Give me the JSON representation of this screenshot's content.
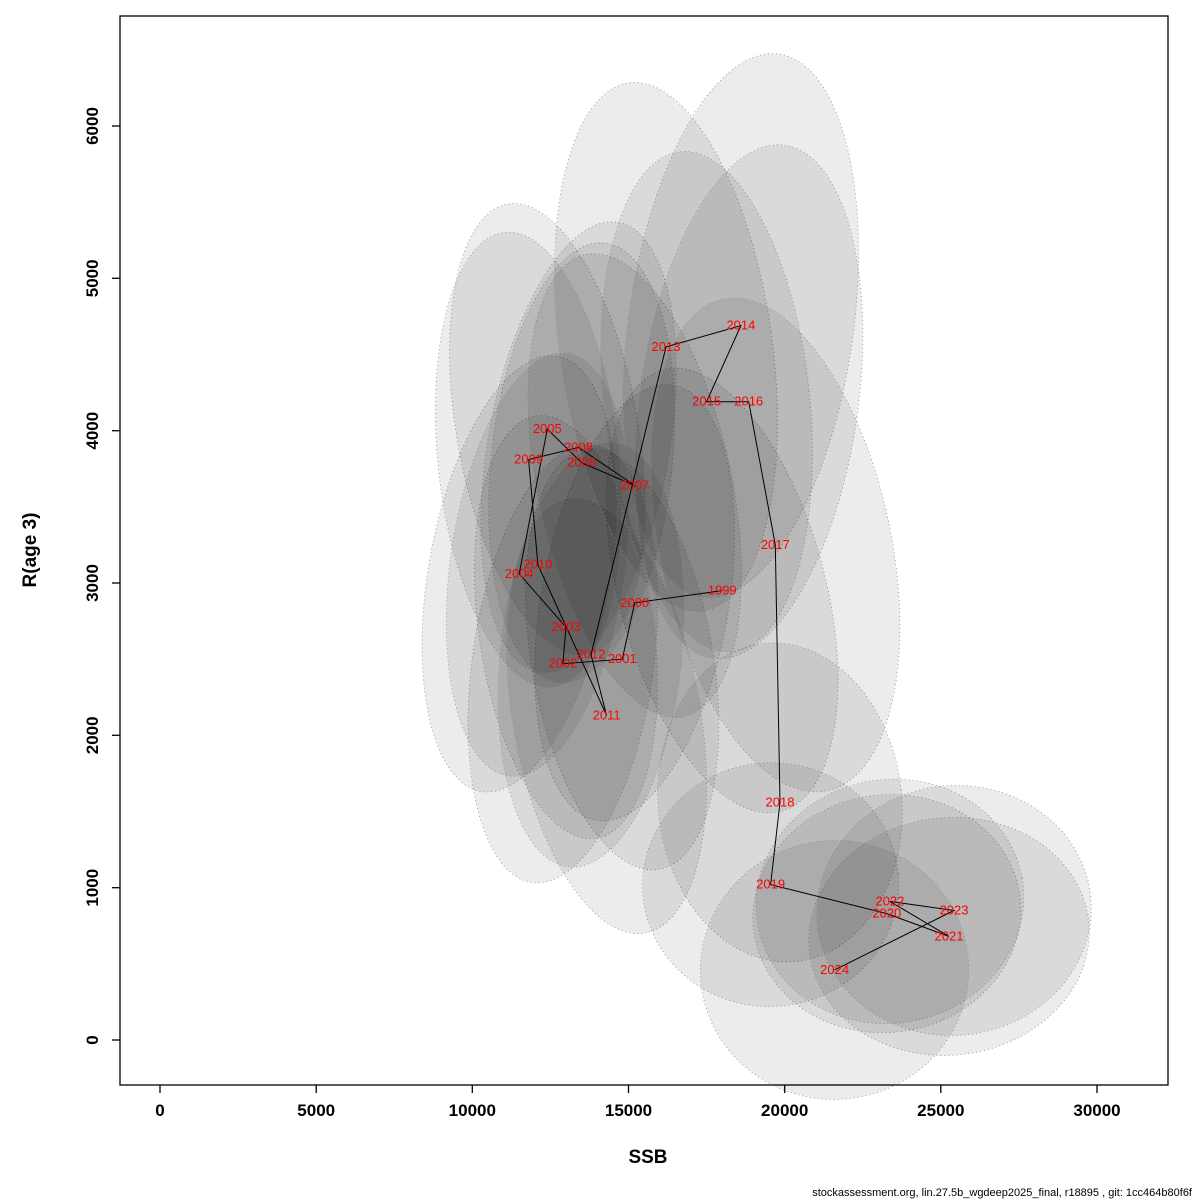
{
  "footer": "stockassessment.org, lin.27.5b_wgdeep2025_final, r18895 , git: 1cc464b80f6f",
  "chart_data": {
    "type": "scatter",
    "title": "",
    "xlabel": "SSB",
    "ylabel": "R(age 3)",
    "xlim": [
      0,
      30000
    ],
    "ylim": [
      0,
      6000
    ],
    "grid": false,
    "legend": "none",
    "x_ticks": [
      0,
      5000,
      10000,
      15000,
      20000,
      25000,
      30000
    ],
    "y_ticks": [
      0,
      1000,
      2000,
      3000,
      4000,
      5000,
      6000
    ],
    "label_color": "#ff0000",
    "ellipse_fill": "rgba(0,0,0,0.075)",
    "ellipse_stroke": "#8c8c8c",
    "description": "Stock-recruitment trajectory with per-year confidence ellipses, years connected sequentially 1999-2024",
    "points": [
      {
        "year": "1999",
        "ssb": 18000,
        "r": 2950,
        "rx": 3300,
        "ry": 1500,
        "rot": -15
      },
      {
        "year": "2000",
        "ssb": 15200,
        "r": 2870,
        "rx": 3000,
        "ry": 1450,
        "rot": 10
      },
      {
        "year": "2001",
        "ssb": 14800,
        "r": 2500,
        "rx": 2900,
        "ry": 1400,
        "rot": -10
      },
      {
        "year": "2002",
        "ssb": 12900,
        "r": 2470,
        "rx": 2900,
        "ry": 1450,
        "rot": 8
      },
      {
        "year": "2003",
        "ssb": 13000,
        "r": 2710,
        "rx": 2800,
        "ry": 1400,
        "rot": -8
      },
      {
        "year": "2004",
        "ssb": 11500,
        "r": 3060,
        "rx": 2900,
        "ry": 1450,
        "rot": 10
      },
      {
        "year": "2005",
        "ssb": 12400,
        "r": 4010,
        "rx": 2900,
        "ry": 1500,
        "rot": -10
      },
      {
        "year": "2006",
        "ssb": 13500,
        "r": 3790,
        "rx": 2900,
        "ry": 1450,
        "rot": 6
      },
      {
        "year": "2007",
        "ssb": 15200,
        "r": 3640,
        "rx": 3100,
        "ry": 1550,
        "rot": -12
      },
      {
        "year": "2008",
        "ssb": 13400,
        "r": 3890,
        "rx": 2900,
        "ry": 1500,
        "rot": 10
      },
      {
        "year": "2009",
        "ssb": 11800,
        "r": 3810,
        "rx": 2900,
        "ry": 1500,
        "rot": -6
      },
      {
        "year": "2010",
        "ssb": 12100,
        "r": 3120,
        "rx": 2800,
        "ry": 1400,
        "rot": 8
      },
      {
        "year": "2011",
        "ssb": 14300,
        "r": 2130,
        "rx": 3000,
        "ry": 1450,
        "rot": -10
      },
      {
        "year": "2012",
        "ssb": 13800,
        "r": 2530,
        "rx": 2900,
        "ry": 1400,
        "rot": 6
      },
      {
        "year": "2013",
        "ssb": 16200,
        "r": 4550,
        "rx": 3400,
        "ry": 1750,
        "rot": -8
      },
      {
        "year": "2014",
        "ssb": 18600,
        "r": 4690,
        "rx": 3600,
        "ry": 1800,
        "rot": 8
      },
      {
        "year": "2015",
        "ssb": 17500,
        "r": 4190,
        "rx": 3300,
        "ry": 1650,
        "rot": -6
      },
      {
        "year": "2016",
        "ssb": 18850,
        "r": 4190,
        "rx": 3500,
        "ry": 1700,
        "rot": 8
      },
      {
        "year": "2017",
        "ssb": 19700,
        "r": 3250,
        "rx": 3700,
        "ry": 1650,
        "rot": -12
      },
      {
        "year": "2018",
        "ssb": 19850,
        "r": 1560,
        "rx": 3900,
        "ry": 1050,
        "rot": -6
      },
      {
        "year": "2019",
        "ssb": 19550,
        "r": 1020,
        "rx": 4100,
        "ry": 800,
        "rot": -5
      },
      {
        "year": "2020",
        "ssb": 23270,
        "r": 830,
        "rx": 4300,
        "ry": 780,
        "rot": -8
      },
      {
        "year": "2021",
        "ssb": 25260,
        "r": 680,
        "rx": 4500,
        "ry": 780,
        "rot": -6
      },
      {
        "year": "2022",
        "ssb": 23370,
        "r": 910,
        "rx": 4300,
        "ry": 800,
        "rot": -10
      },
      {
        "year": "2023",
        "ssb": 25420,
        "r": 850,
        "rx": 4400,
        "ry": 820,
        "rot": -6
      },
      {
        "year": "2024",
        "ssb": 21600,
        "r": 460,
        "rx": 4300,
        "ry": 850,
        "rot": -4
      }
    ]
  }
}
